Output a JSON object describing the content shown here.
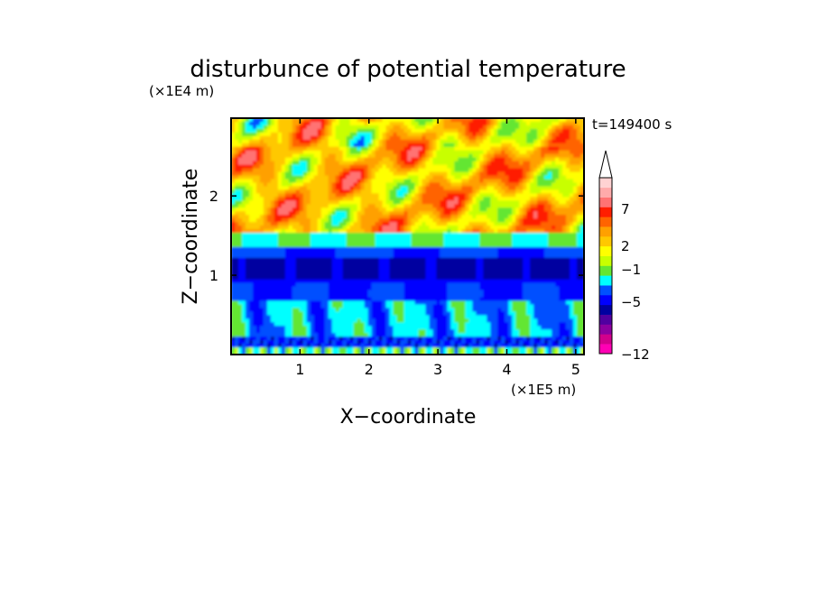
{
  "chart_data": {
    "type": "heatmap",
    "title": "disturbunce of potential temperature",
    "xlabel": "X−coordinate",
    "ylabel": "Z−coordinate",
    "x_unit_label": "(×1E5 m)",
    "y_unit_label": "(×1E4 m)",
    "time_label": "t=149400 s",
    "xlim": [
      0,
      5.12
    ],
    "ylim": [
      0,
      2.98
    ],
    "x_ticks": [
      1,
      2,
      3,
      4,
      5
    ],
    "x_tick_labels": [
      "1",
      "2",
      "3",
      "4",
      "5"
    ],
    "y_ticks": [
      1,
      2
    ],
    "y_tick_labels": [
      "1",
      "2"
    ],
    "colorbar": {
      "label_values": [
        "7",
        "2",
        "−1",
        "−5",
        "−12"
      ],
      "colors": [
        "#ff00b4",
        "#d2008c",
        "#8c00a0",
        "#5000a0",
        "#0000a0",
        "#0000ff",
        "#0050ff",
        "#00ffff",
        "#64e632",
        "#c8ff00",
        "#ffff00",
        "#ffc800",
        "#ffa000",
        "#ff6400",
        "#ff1e00",
        "#ff7373",
        "#ffaaaa",
        "#ffd2d2"
      ],
      "extend": "max"
    }
  }
}
